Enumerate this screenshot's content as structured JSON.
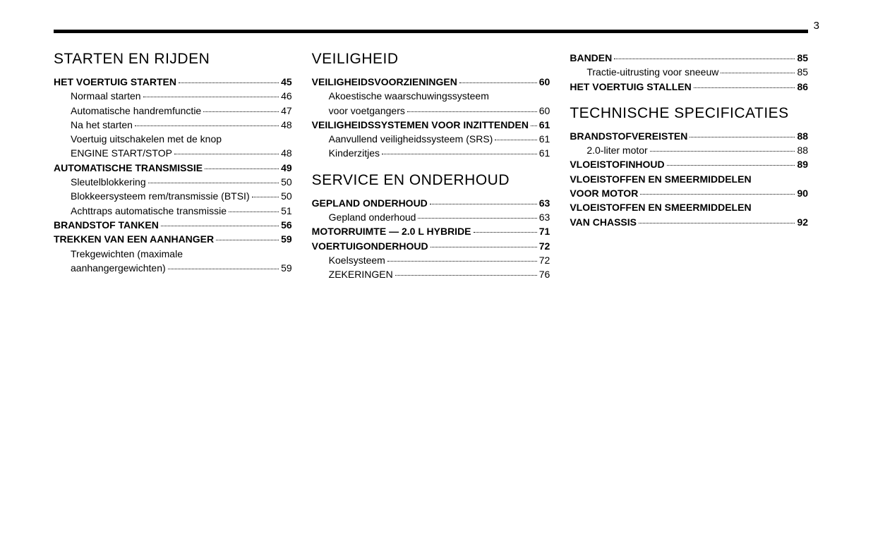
{
  "page_number": "3",
  "columns": [
    {
      "sections": [
        {
          "heading": "STARTEN EN RIJDEN",
          "entries": [
            {
              "label": "HET VOERTUIG STARTEN",
              "page": "45",
              "level": 0
            },
            {
              "label": "Normaal starten",
              "page": "46",
              "level": 1
            },
            {
              "label": "Automatische handremfunctie",
              "page": "47",
              "level": 1
            },
            {
              "label": "Na het starten",
              "page": "48",
              "level": 1
            },
            {
              "label_lines": [
                "Voertuig uitschakelen met de knop",
                "ENGINE START/STOP"
              ],
              "page": "48",
              "level": 1
            },
            {
              "label": "AUTOMATISCHE TRANSMISSIE",
              "page": "49",
              "level": 0
            },
            {
              "label": "Sleutelblokkering",
              "page": "50",
              "level": 1
            },
            {
              "label": "Blokkeersysteem rem/transmissie (BTSI)",
              "page": "50",
              "level": 1
            },
            {
              "label": "Achttraps automatische transmissie",
              "page": "51",
              "level": 1
            },
            {
              "label": "BRANDSTOF TANKEN",
              "page": "56",
              "level": 0
            },
            {
              "label": "TREKKEN VAN EEN AANHANGER",
              "page": "59",
              "level": 0
            },
            {
              "label_lines": [
                "Trekgewichten (maximale",
                "aanhangergewichten)"
              ],
              "page": "59",
              "level": 1
            }
          ]
        }
      ]
    },
    {
      "sections": [
        {
          "heading": "VEILIGHEID",
          "entries": [
            {
              "label": "VEILIGHEIDSVOORZIENINGEN",
              "page": "60",
              "level": 0
            },
            {
              "label_lines": [
                "Akoestische waarschuwingssysteem",
                "voor voetgangers"
              ],
              "page": "60",
              "level": 1
            },
            {
              "label": "VEILIGHEIDSSYSTEMEN VOOR INZITTENDEN",
              "page": "61",
              "level": 0
            },
            {
              "label": "Aanvullend veiligheidssysteem (SRS)",
              "page": "61",
              "level": 1
            },
            {
              "label": "Kinderzitjes",
              "page": "61",
              "level": 1
            }
          ]
        },
        {
          "heading": "SERVICE EN ONDERHOUD",
          "entries": [
            {
              "label": "GEPLAND ONDERHOUD",
              "page": "63",
              "level": 0
            },
            {
              "label": "Gepland onderhoud",
              "page": "63",
              "level": 1
            },
            {
              "label": "MOTORRUIMTE — 2.0 L HYBRIDE",
              "page": "71",
              "level": 0
            },
            {
              "label": "VOERTUIGONDERHOUD",
              "page": "72",
              "level": 0
            },
            {
              "label": "Koelsysteem",
              "page": "72",
              "level": 1
            },
            {
              "label": "ZEKERINGEN",
              "page": "76",
              "level": 1
            }
          ]
        }
      ]
    },
    {
      "sections": [
        {
          "entries": [
            {
              "label": "BANDEN",
              "page": "85",
              "level": 0
            },
            {
              "label": "Tractie-uitrusting voor sneeuw",
              "page": "85",
              "level": 1
            },
            {
              "label": "HET VOERTUIG STALLEN",
              "page": "86",
              "level": 0
            }
          ]
        },
        {
          "heading": "TECHNISCHE SPECIFICATIES",
          "entries": [
            {
              "label": "BRANDSTOFVEREISTEN",
              "page": "88",
              "level": 0
            },
            {
              "label": "2.0-liter motor",
              "page": "88",
              "level": 1
            },
            {
              "label": "VLOEISTOFINHOUD",
              "page": "89",
              "level": 0
            },
            {
              "label_lines": [
                "VLOEISTOFFEN EN SMEERMIDDELEN",
                "VOOR MOTOR"
              ],
              "page": "90",
              "level": 0
            },
            {
              "label_lines": [
                "VLOEISTOFFEN EN SMEERMIDDELEN",
                "VAN CHASSIS"
              ],
              "page": "92",
              "level": 0
            }
          ]
        }
      ]
    }
  ]
}
